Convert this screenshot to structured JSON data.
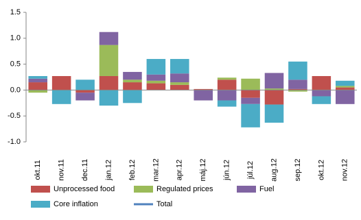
{
  "chart_data": {
    "type": "bar",
    "categories": [
      "okt.11",
      "nov.11",
      "dec.11",
      "jan.12",
      "feb.12",
      "mar.12",
      "apr.12",
      "máj.12",
      "jún.12",
      "júl.12",
      "aug.12",
      "sep.12",
      "okt.12",
      "nov.12"
    ],
    "series": [
      {
        "name": "Unprocessed food",
        "color": "#c0504d",
        "values": [
          0.15,
          0.27,
          -0.05,
          0.27,
          0.15,
          0.13,
          0.1,
          0.02,
          0.2,
          -0.15,
          -0.28,
          0.02,
          0.27,
          0.05
        ]
      },
      {
        "name": "Regulated prices",
        "color": "#9bbb59",
        "values": [
          -0.05,
          0,
          0,
          0.6,
          0.05,
          0.05,
          0.05,
          0,
          0.04,
          0.22,
          0.03,
          -0.03,
          0,
          0.03
        ]
      },
      {
        "name": "Fuel",
        "color": "#8064a2",
        "values": [
          0.07,
          0,
          -0.15,
          0.25,
          0.15,
          0.12,
          0.17,
          -0.2,
          -0.2,
          -0.12,
          0.3,
          0.18,
          -0.12,
          -0.27
        ]
      },
      {
        "name": "Core inflation",
        "color": "#4bacc6",
        "values": [
          0.05,
          -0.27,
          0.2,
          -0.3,
          -0.25,
          0.3,
          0.28,
          0,
          -0.12,
          -0.45,
          -0.35,
          0.35,
          -0.15,
          0.1
        ]
      },
      {
        "name": "Total",
        "type": "line",
        "color": "#4f81bd",
        "values": [
          0.2,
          0,
          0,
          0.8,
          0.1,
          0.6,
          0.6,
          -0.2,
          -0.1,
          -0.5,
          -0.3,
          0.5,
          0,
          -0.1
        ]
      }
    ],
    "ylim": [
      -1,
      1.5
    ],
    "yticks": [
      {
        "value": -1,
        "label": "-1.0"
      },
      -0.5,
      {
        "value": 0,
        "label": "0.0"
      },
      0.5,
      {
        "value": 1,
        "label": "1.0"
      },
      1.5
    ]
  }
}
